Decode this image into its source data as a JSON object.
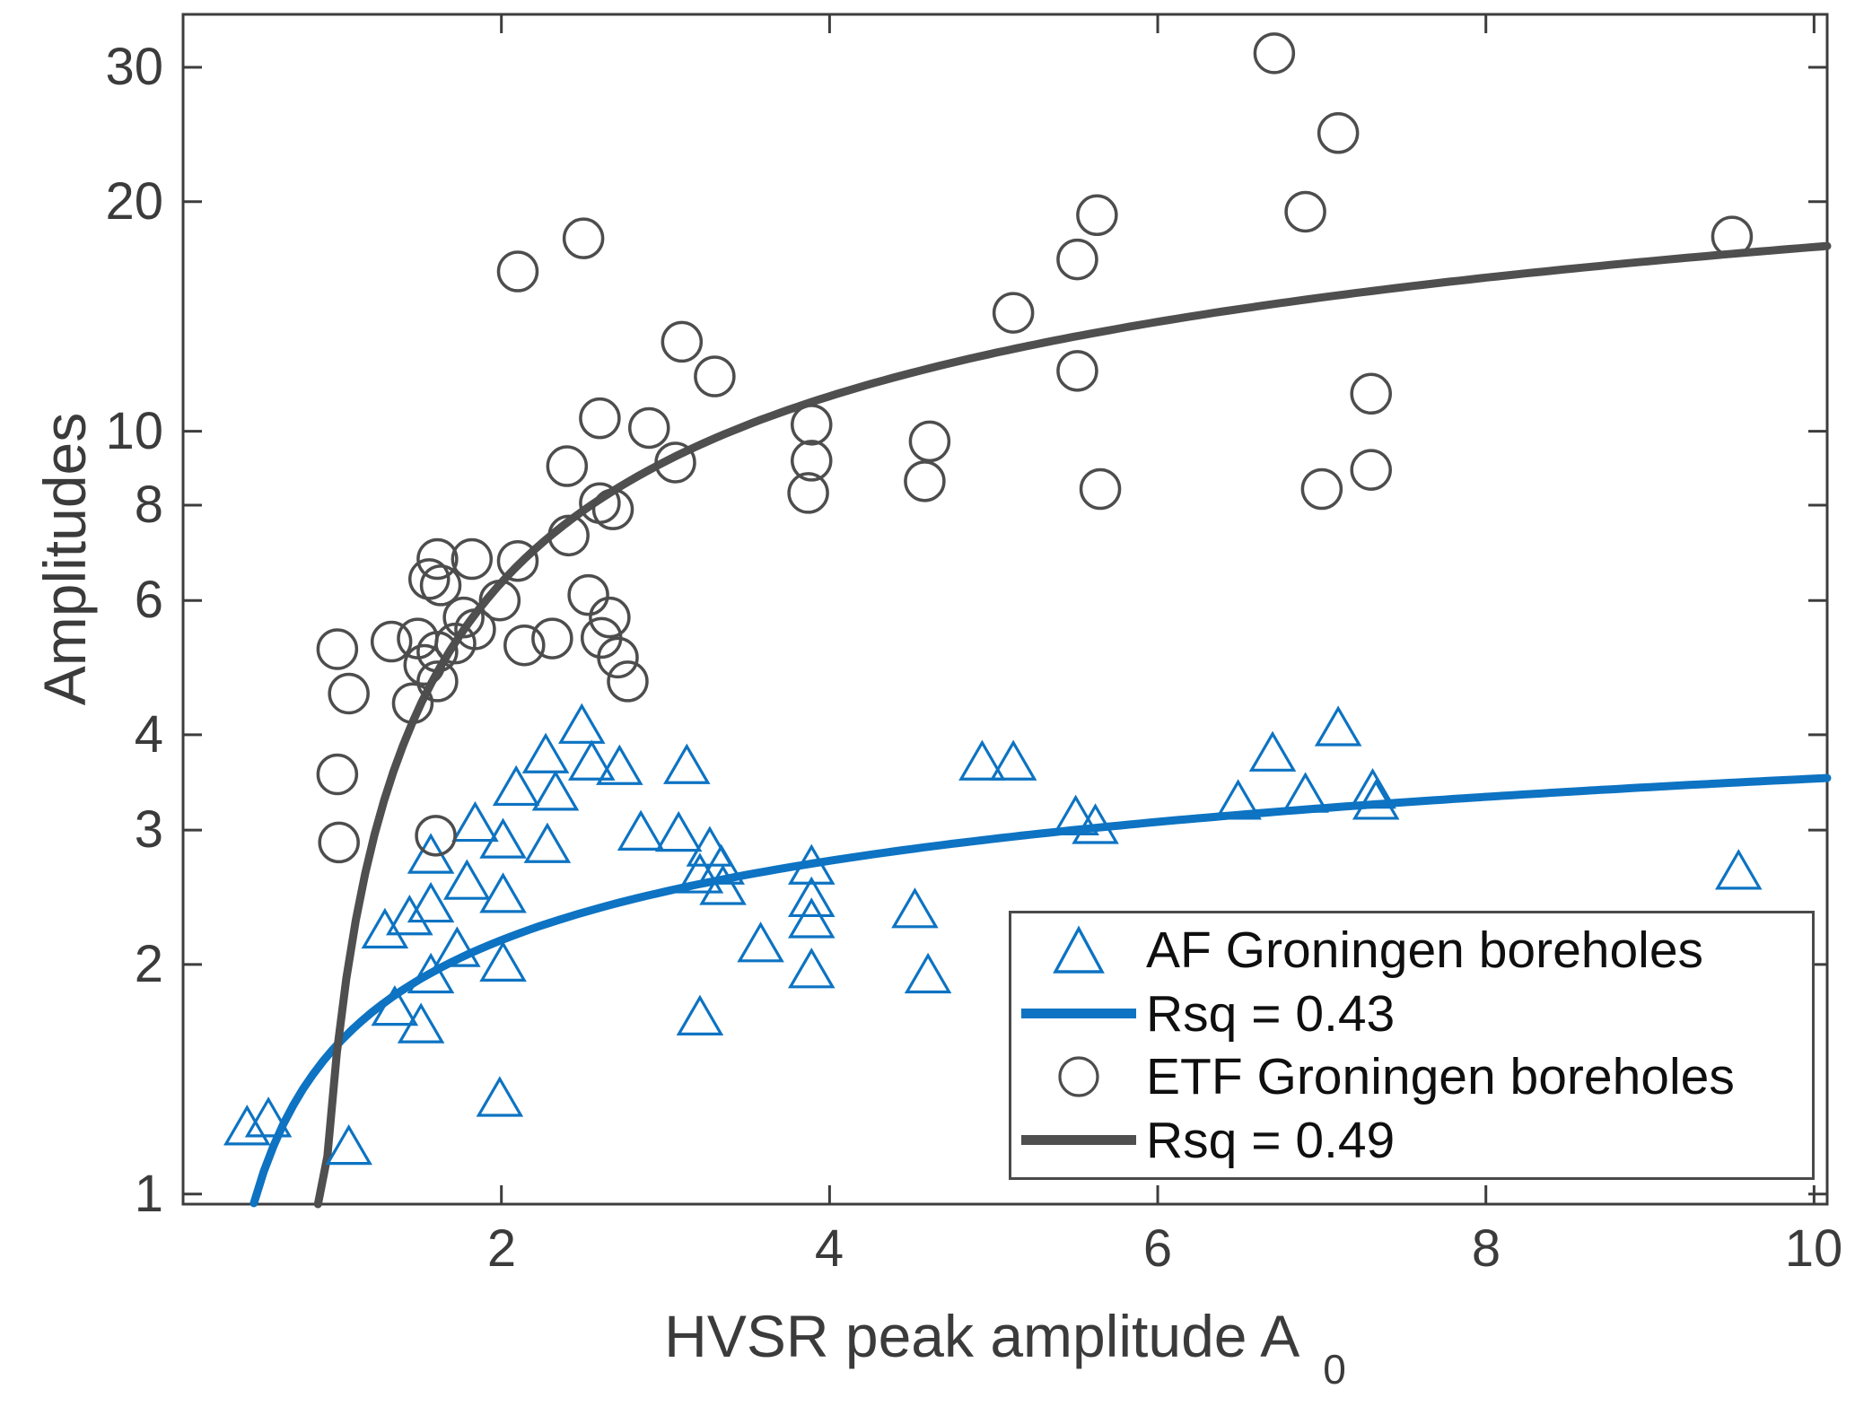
{
  "page": {
    "background": "#ffffff"
  },
  "chart_data": {
    "type": "scatter",
    "title": "",
    "xlabel": "HVSR peak amplitude A",
    "xlabel_subscript": "0",
    "ylabel": "Amplitudes",
    "x_scale": "linear",
    "y_scale": "log",
    "xlim": [
      0.06,
      10.08
    ],
    "ylim": [
      0.97,
      35.2
    ],
    "x_ticks": [
      2,
      4,
      6,
      8,
      10
    ],
    "y_ticks": [
      1,
      2,
      3,
      4,
      6,
      8,
      10,
      20,
      30
    ],
    "grid": false,
    "axis_color": "#3d3d3d",
    "series": [
      {
        "name": "AF Groningen boreholes",
        "marker": "triangle",
        "color": "#0d73c2",
        "points": [
          [
            0.45,
            1.22
          ],
          [
            0.58,
            1.25
          ],
          [
            1.07,
            1.15
          ],
          [
            1.99,
            1.33
          ],
          [
            2.49,
            4.1
          ],
          [
            2.27,
            3.75
          ],
          [
            2.55,
            3.67
          ],
          [
            2.72,
            3.62
          ],
          [
            2.09,
            3.4
          ],
          [
            2.33,
            3.35
          ],
          [
            1.84,
            3.05
          ],
          [
            2.01,
            2.9
          ],
          [
            2.28,
            2.86
          ],
          [
            1.57,
            2.77
          ],
          [
            1.79,
            2.56
          ],
          [
            2.01,
            2.46
          ],
          [
            1.57,
            2.39
          ],
          [
            1.29,
            2.21
          ],
          [
            1.73,
            2.09
          ],
          [
            2.01,
            2.0
          ],
          [
            1.57,
            1.93
          ],
          [
            1.35,
            1.75
          ],
          [
            1.51,
            1.66
          ],
          [
            1.44,
            2.3
          ],
          [
            3.13,
            3.63
          ],
          [
            2.85,
            2.97
          ],
          [
            3.08,
            2.96
          ],
          [
            3.27,
            2.83
          ],
          [
            3.34,
            2.68
          ],
          [
            3.21,
            2.61
          ],
          [
            3.35,
            2.52
          ],
          [
            3.89,
            2.68
          ],
          [
            3.89,
            2.43
          ],
          [
            3.89,
            2.28
          ],
          [
            4.52,
            2.35
          ],
          [
            4.93,
            3.67
          ],
          [
            5.12,
            3.67
          ],
          [
            5.5,
            3.11
          ],
          [
            5.62,
            3.03
          ],
          [
            3.89,
            1.96
          ],
          [
            4.6,
            1.93
          ],
          [
            3.21,
            1.7
          ],
          [
            3.58,
            2.12
          ],
          [
            7.1,
            4.07
          ],
          [
            6.7,
            3.77
          ],
          [
            6.9,
            3.33
          ],
          [
            7.31,
            3.37
          ],
          [
            7.33,
            3.26
          ],
          [
            6.49,
            3.26
          ],
          [
            9.54,
            2.64
          ]
        ]
      },
      {
        "name": "ETF Groningen boreholes",
        "marker": "circle",
        "color": "#4d4d4d",
        "points": [
          [
            6.71,
            31.3
          ],
          [
            7.1,
            24.6
          ],
          [
            6.9,
            19.4
          ],
          [
            9.5,
            18.0
          ],
          [
            5.63,
            19.2
          ],
          [
            5.51,
            16.8
          ],
          [
            5.12,
            14.3
          ],
          [
            5.51,
            12.0
          ],
          [
            2.5,
            17.9
          ],
          [
            2.1,
            16.2
          ],
          [
            3.1,
            13.1
          ],
          [
            3.3,
            11.8
          ],
          [
            7.3,
            11.2
          ],
          [
            7.3,
            8.9
          ],
          [
            7.0,
            8.4
          ],
          [
            2.6,
            10.4
          ],
          [
            2.9,
            10.1
          ],
          [
            3.89,
            10.2
          ],
          [
            3.89,
            9.15
          ],
          [
            3.87,
            8.3
          ],
          [
            3.06,
            9.1
          ],
          [
            4.61,
            9.7
          ],
          [
            4.58,
            8.6
          ],
          [
            5.65,
            8.4
          ],
          [
            2.4,
            9.0
          ],
          [
            2.6,
            8.05
          ],
          [
            2.68,
            7.9
          ],
          [
            2.41,
            7.3
          ],
          [
            1.61,
            6.8
          ],
          [
            1.82,
            6.8
          ],
          [
            1.56,
            6.4
          ],
          [
            1.63,
            6.28
          ],
          [
            2.1,
            6.76
          ],
          [
            1.99,
            6.0
          ],
          [
            2.53,
            6.1
          ],
          [
            2.66,
            5.7
          ],
          [
            1.77,
            5.7
          ],
          [
            1.84,
            5.5
          ],
          [
            1.72,
            5.27
          ],
          [
            1.33,
            5.3
          ],
          [
            1.0,
            5.18
          ],
          [
            1.49,
            5.35
          ],
          [
            1.61,
            5.14
          ],
          [
            1.53,
            4.94
          ],
          [
            1.61,
            4.7
          ],
          [
            2.14,
            5.24
          ],
          [
            2.31,
            5.35
          ],
          [
            2.61,
            5.36
          ],
          [
            2.71,
            5.05
          ],
          [
            1.07,
            4.53
          ],
          [
            2.77,
            4.7
          ],
          [
            1.46,
            4.4
          ],
          [
            1.0,
            3.55
          ],
          [
            1.01,
            2.89
          ],
          [
            1.6,
            2.95
          ]
        ]
      }
    ],
    "fits": [
      {
        "name": "Rsq = 0.43",
        "color": "#0d73c2",
        "model": "A = a*ln(x) + b",
        "a": 0.84,
        "b": 1.57,
        "x_start": 0.4913,
        "x_end": 10.08,
        "line_width": 9
      },
      {
        "name": "Rsq = 0.49",
        "color": "#4f4f4f",
        "model": "A = a*ln(x) + b",
        "a": 6.9,
        "b": 1.55,
        "x_start": 0.8822,
        "x_end": 10.08,
        "line_width": 9
      }
    ],
    "legend": {
      "position": "bottom-right",
      "entries": [
        {
          "icon": "triangle-marker",
          "label": "AF Groningen boreholes",
          "color": "#0d73c2"
        },
        {
          "icon": "thick-line",
          "label": "Rsq = 0.43",
          "color": "#0d73c2"
        },
        {
          "icon": "circle-marker",
          "label": "ETF Groningen boreholes",
          "color": "#4d4d4d"
        },
        {
          "icon": "thick-line",
          "label": "Rsq = 0.49",
          "color": "#4f4f4f"
        }
      ]
    }
  }
}
